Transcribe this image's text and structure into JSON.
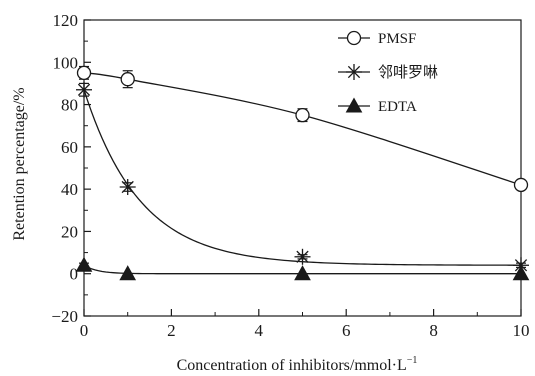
{
  "chart_data": {
    "type": "line",
    "xlabel": "Concentration of inhibitors/mmol·L",
    "xlabel_superscript": "−1",
    "ylabel": "Retention percentage/%",
    "xlim": [
      0,
      10
    ],
    "ylim": [
      -20,
      120
    ],
    "xticks": [
      0,
      2,
      4,
      6,
      8,
      10
    ],
    "yticks": [
      -20,
      0,
      20,
      40,
      60,
      80,
      100,
      120
    ],
    "grid": false,
    "legend_position": "top-right",
    "series": [
      {
        "name": "PMSF",
        "marker": "open-circle",
        "x": [
          0,
          1,
          5,
          10
        ],
        "y": [
          95,
          92,
          75,
          42
        ],
        "error": [
          3,
          4,
          3,
          2
        ]
      },
      {
        "name": "邻啡罗啉",
        "marker": "asterisk",
        "x": [
          0,
          1,
          5,
          10
        ],
        "y": [
          87,
          41,
          8,
          4
        ],
        "error": [
          3,
          2,
          1,
          1
        ]
      },
      {
        "name": "EDTA",
        "marker": "filled-triangle",
        "x": [
          0,
          1,
          5,
          10
        ],
        "y": [
          4,
          0,
          0,
          0
        ],
        "error": [
          1,
          0,
          0,
          0
        ]
      }
    ]
  }
}
